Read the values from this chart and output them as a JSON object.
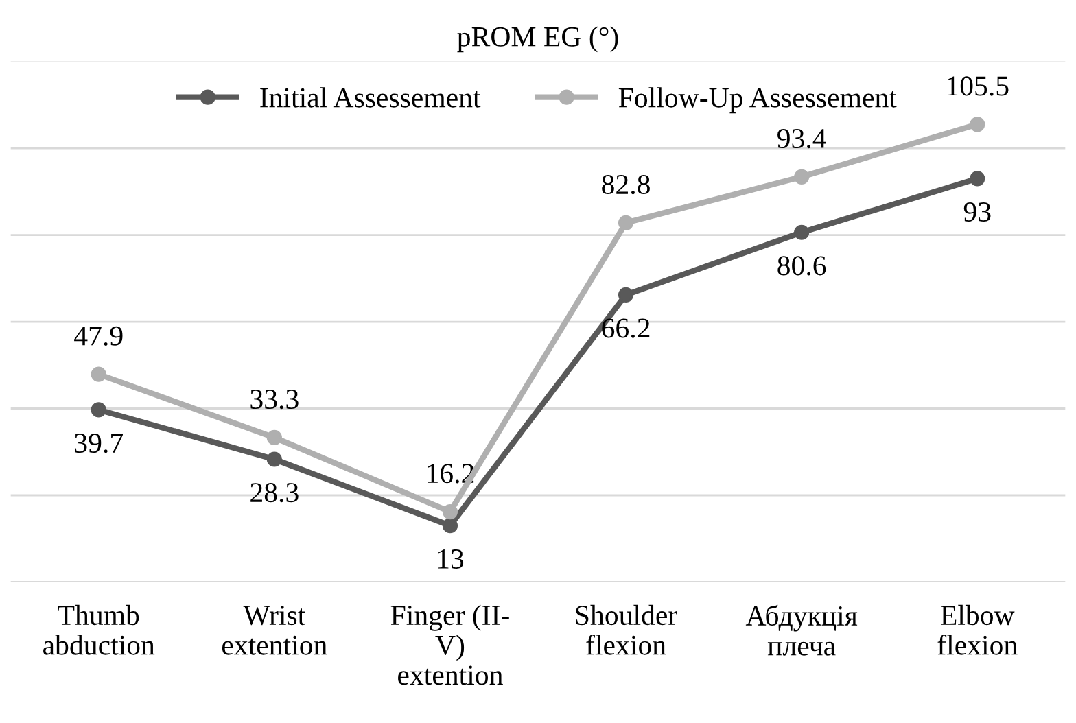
{
  "chart_data": {
    "type": "line",
    "title": "pROM EG (°)",
    "categories": [
      "Thumb\nabduction",
      "Wrist\nextention",
      "Finger (II-\nV)\nextention",
      "Shoulder\nflexion",
      "Абдукція\nплеча",
      "Elbow\nflexion"
    ],
    "series": [
      {
        "name": "Initial Assessement",
        "color": "#595959",
        "values": [
          39.7,
          28.3,
          13,
          66.2,
          80.6,
          93
        ]
      },
      {
        "name": "Follow-Up Assessement",
        "color": "#afafaf",
        "values": [
          47.9,
          33.3,
          16.2,
          82.8,
          93.4,
          105.5
        ]
      }
    ],
    "ylim": [
      0,
      120
    ],
    "yticks": [
      {
        "value": 0,
        "label": null
      },
      {
        "value": 20,
        "label": null
      },
      {
        "value": 40,
        "label": null
      },
      {
        "value": 60,
        "label": null
      },
      {
        "value": 80,
        "label": null
      },
      {
        "value": 100,
        "label": null
      },
      {
        "value": 120,
        "label": null
      }
    ],
    "tick_labels": "x",
    "grid": "y",
    "legend": "top",
    "marker": "circle",
    "line_style": "solid",
    "data_labels": true
  }
}
